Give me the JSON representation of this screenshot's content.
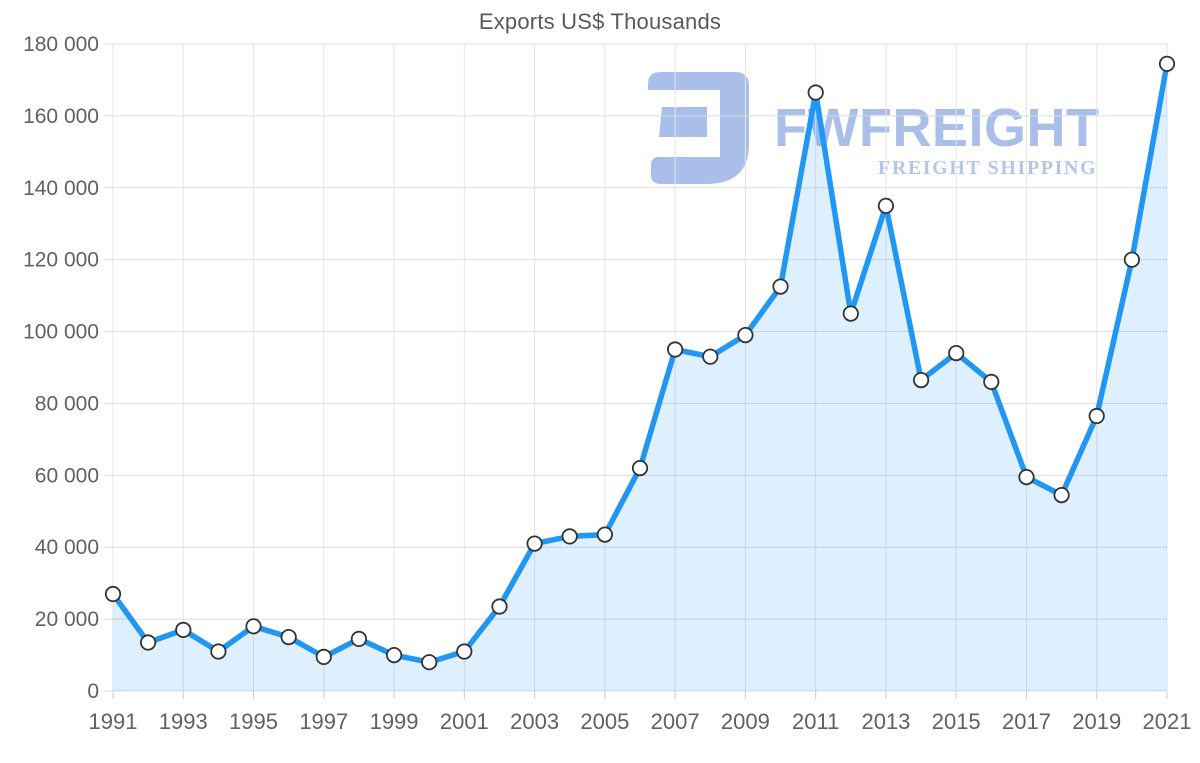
{
  "watermark": {
    "brand": "FWFREIGHT",
    "tagline": "FREIGHT SHIPPING",
    "brand_color": "#a9bfe9",
    "tagline_color": "#b5c6ed"
  },
  "chart_data": {
    "type": "area",
    "title": "Exports US$ Thousands",
    "series_name": "Exports US$ Thousands",
    "x": [
      1991,
      1992,
      1993,
      1994,
      1995,
      1996,
      1997,
      1998,
      1999,
      2000,
      2001,
      2002,
      2003,
      2004,
      2005,
      2006,
      2007,
      2008,
      2009,
      2010,
      2011,
      2012,
      2013,
      2014,
      2015,
      2016,
      2017,
      2018,
      2019,
      2020,
      2021
    ],
    "values": [
      27000,
      13500,
      17000,
      11000,
      18000,
      15000,
      9500,
      14500,
      10000,
      8000,
      11000,
      23500,
      41000,
      43000,
      43500,
      62000,
      95000,
      93000,
      99000,
      112500,
      166500,
      105000,
      135000,
      86500,
      94000,
      86000,
      59500,
      54500,
      76500,
      120000,
      174500
    ],
    "ylim": [
      0,
      180000
    ],
    "y_ticks": [
      0,
      20000,
      40000,
      60000,
      80000,
      100000,
      120000,
      140000,
      160000,
      180000
    ],
    "y_tick_labels": [
      "0",
      "20 000",
      "40 000",
      "60 000",
      "80 000",
      "100 000",
      "120 000",
      "140 000",
      "160 000",
      "180 000"
    ],
    "x_tick_years": [
      1991,
      1993,
      1995,
      1997,
      1999,
      2001,
      2003,
      2005,
      2007,
      2009,
      2011,
      2013,
      2015,
      2017,
      2019,
      2021
    ],
    "x_tick_labels": [
      "1991",
      "1993",
      "1995",
      "1997",
      "1999",
      "2001",
      "2003",
      "2005",
      "2007",
      "2009",
      "2011",
      "2013",
      "2015",
      "2017",
      "2019",
      "2021"
    ],
    "grid": true,
    "legend_position": "none",
    "line_color": "#2196f3",
    "area_fill": "rgba(33,150,243,0.15)",
    "marker_fill": "#ffffff",
    "marker_stroke": "#333333",
    "grid_color_h": "#dcdcdc",
    "grid_color_v": "#e6e6e6",
    "tick_color": "#cccccc",
    "label_color": "#616161",
    "title_color": "#595959"
  }
}
